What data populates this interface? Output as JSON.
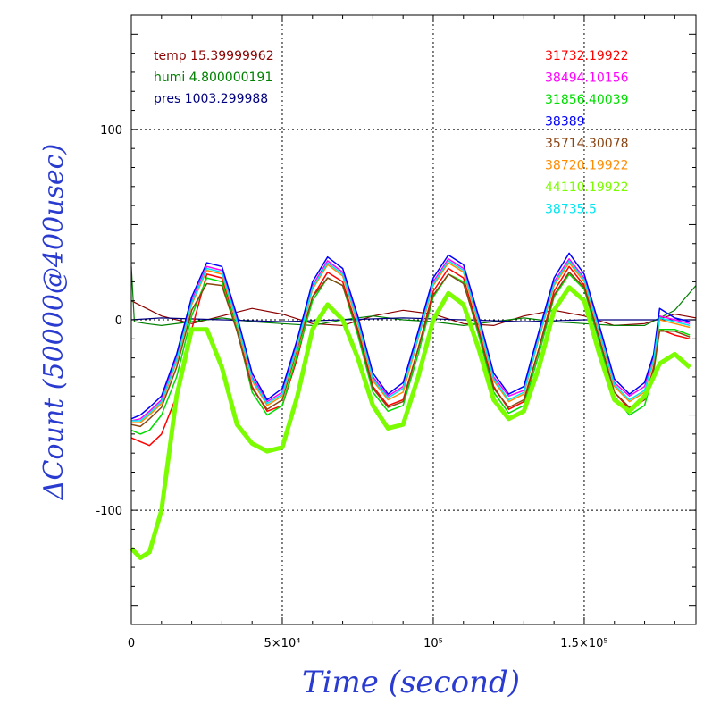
{
  "chart_data": {
    "type": "line",
    "xlabel": "Time (second)",
    "ylabel": "ΔCount (50000@400usec)",
    "xlim": [
      0,
      187000
    ],
    "ylim": [
      -160,
      160
    ],
    "x_ticks": [
      {
        "value": 0,
        "label": "0"
      },
      {
        "value": 50000,
        "label": "5×10⁴"
      },
      {
        "value": 100000,
        "label": "10⁵"
      },
      {
        "value": 150000,
        "label": "1.5×10⁵"
      }
    ],
    "y_ticks": [
      {
        "value": -100,
        "label": "-100"
      },
      {
        "value": 0,
        "label": "0"
      },
      {
        "value": 100,
        "label": "100"
      }
    ],
    "grid": true,
    "env_legend": [
      {
        "label": "temp 15.39999962",
        "color": "#8b0000"
      },
      {
        "label": "humi 4.800000191",
        "color": "#008000"
      },
      {
        "label": "pres 1003.299988",
        "color": "#00007f"
      }
    ],
    "series": [
      {
        "name": "31732.19922",
        "color": "#ff0000",
        "x": [
          0,
          3000,
          6000,
          10000,
          15000,
          20000,
          25000,
          30000,
          35000,
          40000,
          45000,
          50000,
          55000,
          60000,
          65000,
          70000,
          75000,
          80000,
          85000,
          90000,
          95000,
          100000,
          105000,
          110000,
          115000,
          120000,
          125000,
          130000,
          135000,
          140000,
          145000,
          150000,
          155000,
          160000,
          165000,
          170000,
          173000,
          175000,
          180000,
          185000
        ],
        "y": [
          -62,
          -64,
          -66,
          -60,
          -40,
          -5,
          24,
          22,
          -5,
          -35,
          -48,
          -45,
          -20,
          12,
          25,
          20,
          -5,
          -35,
          -45,
          -42,
          -15,
          15,
          27,
          22,
          -5,
          -35,
          -47,
          -43,
          -15,
          15,
          28,
          18,
          -10,
          -38,
          -47,
          -42,
          -25,
          -5,
          -8,
          -10
        ]
      },
      {
        "name": "38494.10156",
        "color": "#ff00ff",
        "x": [
          0,
          3000,
          6000,
          10000,
          15000,
          20000,
          25000,
          30000,
          35000,
          40000,
          45000,
          50000,
          55000,
          60000,
          65000,
          70000,
          75000,
          80000,
          85000,
          90000,
          95000,
          100000,
          105000,
          110000,
          115000,
          120000,
          125000,
          130000,
          135000,
          140000,
          145000,
          150000,
          155000,
          160000,
          165000,
          170000,
          173000,
          175000,
          180000,
          185000
        ],
        "y": [
          -53,
          -52,
          -48,
          -42,
          -20,
          10,
          28,
          26,
          0,
          -30,
          -43,
          -38,
          -12,
          18,
          31,
          25,
          0,
          -30,
          -40,
          -35,
          -8,
          20,
          32,
          27,
          0,
          -30,
          -40,
          -37,
          -8,
          20,
          32,
          22,
          -5,
          -33,
          -40,
          -35,
          -20,
          2,
          0,
          -2
        ]
      },
      {
        "name": "31856.40039",
        "color": "#00dd00",
        "x": [
          0,
          3000,
          6000,
          10000,
          15000,
          20000,
          25000,
          30000,
          35000,
          40000,
          45000,
          50000,
          55000,
          60000,
          65000,
          70000,
          75000,
          80000,
          85000,
          90000,
          95000,
          100000,
          105000,
          110000,
          115000,
          120000,
          125000,
          130000,
          135000,
          140000,
          145000,
          150000,
          155000,
          160000,
          165000,
          170000,
          173000,
          175000,
          180000,
          185000
        ],
        "y": [
          -58,
          -60,
          -58,
          -50,
          -30,
          2,
          22,
          20,
          -5,
          -38,
          -50,
          -45,
          -18,
          10,
          22,
          18,
          -8,
          -38,
          -48,
          -45,
          -18,
          12,
          24,
          20,
          -8,
          -38,
          -49,
          -45,
          -18,
          12,
          24,
          16,
          -12,
          -40,
          -50,
          -45,
          -28,
          -5,
          -5,
          -8
        ]
      },
      {
        "name": "38389",
        "color": "#0000ff",
        "x": [
          0,
          3000,
          6000,
          10000,
          15000,
          20000,
          25000,
          30000,
          35000,
          40000,
          45000,
          50000,
          55000,
          60000,
          65000,
          70000,
          75000,
          80000,
          85000,
          90000,
          95000,
          100000,
          105000,
          110000,
          115000,
          120000,
          125000,
          130000,
          135000,
          140000,
          145000,
          150000,
          155000,
          160000,
          165000,
          170000,
          173000,
          175000,
          180000,
          185000
        ],
        "y": [
          -52,
          -50,
          -46,
          -40,
          -18,
          12,
          30,
          28,
          2,
          -28,
          -42,
          -36,
          -10,
          20,
          33,
          27,
          2,
          -28,
          -39,
          -33,
          -6,
          22,
          34,
          29,
          2,
          -28,
          -39,
          -35,
          -6,
          22,
          35,
          24,
          -3,
          -31,
          -39,
          -33,
          -18,
          6,
          1,
          -1
        ]
      },
      {
        "name": "35714.30078",
        "color": "#8b4513",
        "x": [
          0,
          3000,
          6000,
          10000,
          15000,
          20000,
          25000,
          30000,
          35000,
          40000,
          45000,
          50000,
          55000,
          60000,
          65000,
          70000,
          75000,
          80000,
          85000,
          90000,
          95000,
          100000,
          105000,
          110000,
          115000,
          120000,
          125000,
          130000,
          135000,
          140000,
          145000,
          150000,
          155000,
          160000,
          165000,
          170000,
          173000,
          175000,
          180000,
          185000
        ],
        "y": [
          -55,
          -56,
          -52,
          -46,
          -25,
          5,
          19,
          18,
          -6,
          -36,
          -47,
          -42,
          -15,
          12,
          22,
          18,
          -6,
          -36,
          -46,
          -43,
          -15,
          13,
          24,
          19,
          -6,
          -36,
          -46,
          -42,
          -15,
          13,
          25,
          17,
          -10,
          -38,
          -46,
          -42,
          -26,
          -6,
          -6,
          -9
        ]
      },
      {
        "name": "38720.19922",
        "color": "#ff8c00",
        "x": [
          0,
          3000,
          6000,
          10000,
          15000,
          20000,
          25000,
          30000,
          35000,
          40000,
          45000,
          50000,
          55000,
          60000,
          65000,
          70000,
          75000,
          80000,
          85000,
          90000,
          95000,
          100000,
          105000,
          110000,
          115000,
          120000,
          125000,
          130000,
          135000,
          140000,
          145000,
          150000,
          155000,
          160000,
          165000,
          170000,
          173000,
          175000,
          180000,
          185000
        ],
        "y": [
          -54,
          -54,
          -50,
          -44,
          -22,
          8,
          26,
          24,
          -2,
          -32,
          -45,
          -40,
          -14,
          16,
          29,
          23,
          -2,
          -32,
          -42,
          -38,
          -10,
          18,
          30,
          25,
          -2,
          -32,
          -43,
          -39,
          -10,
          18,
          30,
          20,
          -7,
          -35,
          -43,
          -38,
          -22,
          0,
          -2,
          -4
        ]
      },
      {
        "name": "44110.19922",
        "color": "#7cfc00",
        "x": [
          0,
          3000,
          6000,
          10000,
          15000,
          20000,
          25000,
          30000,
          35000,
          40000,
          45000,
          50000,
          55000,
          60000,
          65000,
          70000,
          75000,
          80000,
          85000,
          90000,
          95000,
          100000,
          105000,
          110000,
          115000,
          120000,
          125000,
          130000,
          135000,
          140000,
          145000,
          150000,
          155000,
          160000,
          165000,
          170000,
          173000,
          175000,
          180000,
          185000
        ],
        "y": [
          -120,
          -125,
          -122,
          -100,
          -40,
          -5,
          -5,
          -25,
          -55,
          -65,
          -69,
          -67,
          -40,
          -5,
          8,
          0,
          -20,
          -45,
          -57,
          -55,
          -30,
          0,
          14,
          8,
          -15,
          -42,
          -52,
          -48,
          -25,
          5,
          17,
          10,
          -18,
          -42,
          -48,
          -40,
          -30,
          -23,
          -18,
          -25
        ]
      },
      {
        "name": "38735.5",
        "color": "#00e5ee",
        "x": [
          0,
          3000,
          6000,
          10000,
          15000,
          20000,
          25000,
          30000,
          35000,
          40000,
          45000,
          50000,
          55000,
          60000,
          65000,
          70000,
          75000,
          80000,
          85000,
          90000,
          95000,
          100000,
          105000,
          110000,
          115000,
          120000,
          125000,
          130000,
          135000,
          140000,
          145000,
          150000,
          155000,
          160000,
          165000,
          170000,
          173000,
          175000,
          180000,
          185000
        ],
        "y": [
          -53,
          -53,
          -49,
          -43,
          -21,
          9,
          27,
          25,
          -1,
          -31,
          -44,
          -39,
          -13,
          17,
          30,
          24,
          -1,
          -31,
          -41,
          -36,
          -9,
          19,
          31,
          26,
          -1,
          -31,
          -42,
          -38,
          -9,
          19,
          31,
          21,
          -6,
          -34,
          -42,
          -37,
          -21,
          1,
          -1,
          -3
        ]
      }
    ],
    "env_series": [
      {
        "name": "temp",
        "color": "#8b0000",
        "x": [
          0,
          10000,
          20000,
          30000,
          40000,
          50000,
          60000,
          70000,
          80000,
          90000,
          100000,
          110000,
          120000,
          130000,
          140000,
          150000,
          160000,
          170000,
          180000,
          187000
        ],
        "y": [
          10,
          2,
          -2,
          2,
          6,
          3,
          -2,
          -3,
          2,
          5,
          3,
          -2,
          -3,
          2,
          5,
          2,
          -3,
          -2,
          3,
          1
        ]
      },
      {
        "name": "humi",
        "color": "#008000",
        "x": [
          0,
          1000,
          5000,
          10000,
          20000,
          30000,
          40000,
          50000,
          60000,
          70000,
          80000,
          90000,
          100000,
          110000,
          120000,
          130000,
          140000,
          150000,
          160000,
          170000,
          180000,
          187000
        ],
        "y": [
          28,
          -1,
          -2,
          -3,
          -1,
          1,
          -1,
          -2,
          -3,
          0,
          2,
          0,
          -1,
          -3,
          -1,
          1,
          -1,
          -2,
          -3,
          -3,
          5,
          18
        ]
      },
      {
        "name": "pres",
        "color": "#00007f",
        "x": [
          0,
          10000,
          30000,
          50000,
          70000,
          90000,
          110000,
          130000,
          150000,
          170000,
          187000
        ],
        "y": [
          0,
          1,
          0,
          -1,
          0,
          1,
          0,
          -1,
          0,
          0,
          0
        ]
      }
    ]
  }
}
